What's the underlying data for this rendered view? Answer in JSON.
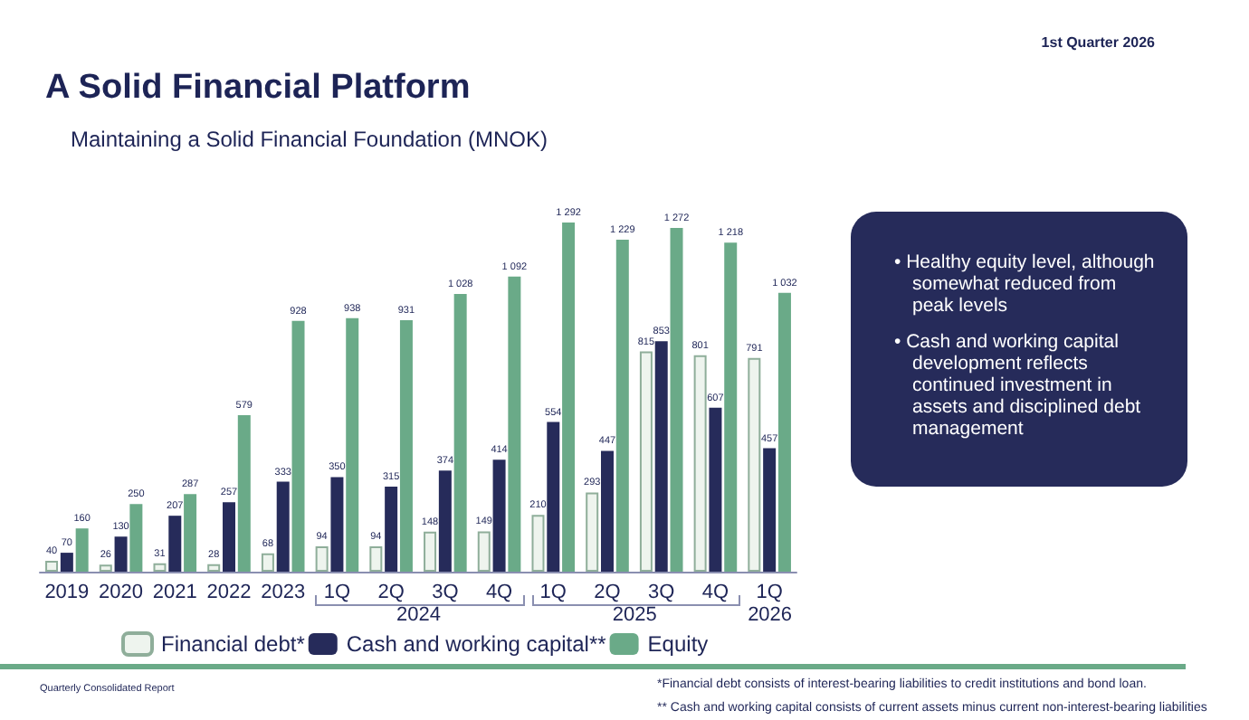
{
  "chart_data": {
    "type": "bar",
    "title": "A Solid Financial Platform",
    "subtitle": "Maintaining a Solid Financial Foundation (MNOK)",
    "categories": [
      "2019",
      "2020",
      "2021",
      "2022",
      "2023",
      "1Q",
      "2Q",
      "3Q",
      "4Q",
      "1Q",
      "2Q",
      "3Q",
      "4Q",
      "1Q"
    ],
    "series": [
      {
        "name": "Financial debt*",
        "color": "#eef4ee",
        "values": [
          40,
          26,
          31,
          28,
          68,
          94,
          94,
          148,
          149,
          210,
          293,
          815,
          801,
          791
        ],
        "value_labels": [
          "40",
          "26",
          "31",
          "28",
          "68",
          "94",
          "94",
          "148",
          "149",
          "210",
          "293",
          "815",
          "801",
          "791"
        ]
      },
      {
        "name": "Cash and working capital**",
        "color": "#262b5a",
        "values": [
          70,
          130,
          207,
          257,
          333,
          350,
          315,
          374,
          414,
          554,
          447,
          853,
          607,
          457
        ],
        "value_labels": [
          "70",
          "130",
          "207",
          "257",
          "333",
          "350",
          "315",
          "374",
          "414",
          "554",
          "447",
          "853",
          "607",
          "457"
        ]
      },
      {
        "name": "Equity",
        "color": "#6aaa88",
        "values": [
          160,
          250,
          287,
          579,
          928,
          938,
          931,
          1028,
          1092,
          1292,
          1229,
          1272,
          1218,
          1032
        ],
        "value_labels": [
          "160",
          "250",
          "287",
          "579",
          "928",
          "938",
          "931",
          "1 028",
          "1 092",
          "1 292",
          "1 229",
          "1 272",
          "1 218",
          "1 032"
        ]
      }
    ],
    "legend": "bottom",
    "annotations": [
      "1st Quarter 2026",
      "2024",
      "2025",
      "2026",
      "• Healthy equity level, although somewhat reduced from peak levels",
      "• Cash and working capital development reflects continued investment in assets and disciplined debt management",
      "*Financial debt consists of interest-bearing liabilities to credit institutions and bond loan.",
      "** Cash and working capital consists of current assets minus current non-interest-bearing liabilities",
      "Quarterly Consolidated Report"
    ]
  }
}
